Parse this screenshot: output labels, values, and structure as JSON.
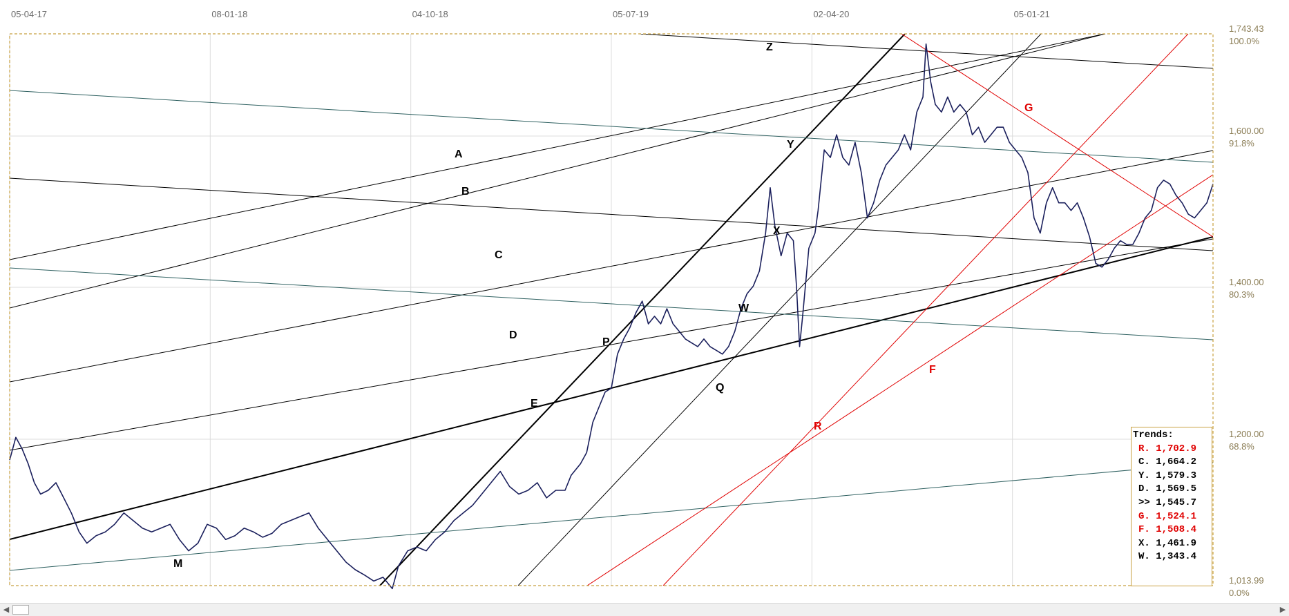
{
  "chart_data": {
    "type": "line",
    "title": "",
    "xlabel": "",
    "ylabel": "",
    "x_ticks": [
      "05-04-17",
      "08-01-18",
      "04-10-18",
      "05-07-19",
      "02-04-20",
      "05-01-21"
    ],
    "y_ticks": [
      {
        "price": "1,743.43",
        "pct": "100.0%"
      },
      {
        "price": "1,600.00",
        "pct": "91.8%"
      },
      {
        "price": "1,400.00",
        "pct": "80.3%"
      },
      {
        "price": "1,200.00",
        "pct": "68.8%"
      },
      {
        "price": "1,013.99",
        "pct": "0.0%"
      }
    ],
    "ylim": [
      1013.99,
      1743.43
    ],
    "grid": true,
    "series": [
      {
        "color": "#1a1f5c",
        "points": [
          [
            0,
            1180
          ],
          [
            4,
            1210
          ],
          [
            8,
            1195
          ],
          [
            12,
            1175
          ],
          [
            16,
            1150
          ],
          [
            20,
            1135
          ],
          [
            25,
            1140
          ],
          [
            30,
            1150
          ],
          [
            35,
            1130
          ],
          [
            40,
            1110
          ],
          [
            45,
            1085
          ],
          [
            50,
            1070
          ],
          [
            56,
            1080
          ],
          [
            62,
            1085
          ],
          [
            68,
            1095
          ],
          [
            74,
            1110
          ],
          [
            80,
            1100
          ],
          [
            86,
            1090
          ],
          [
            92,
            1085
          ],
          [
            98,
            1090
          ],
          [
            104,
            1095
          ],
          [
            110,
            1075
          ],
          [
            116,
            1060
          ],
          [
            122,
            1070
          ],
          [
            128,
            1095
          ],
          [
            134,
            1090
          ],
          [
            140,
            1075
          ],
          [
            146,
            1080
          ],
          [
            152,
            1090
          ],
          [
            158,
            1085
          ],
          [
            164,
            1078
          ],
          [
            170,
            1083
          ],
          [
            176,
            1095
          ],
          [
            182,
            1100
          ],
          [
            188,
            1105
          ],
          [
            194,
            1110
          ],
          [
            200,
            1090
          ],
          [
            206,
            1075
          ],
          [
            212,
            1060
          ],
          [
            218,
            1045
          ],
          [
            224,
            1035
          ],
          [
            230,
            1028
          ],
          [
            236,
            1020
          ],
          [
            242,
            1025
          ],
          [
            248,
            1010
          ],
          [
            252,
            1040
          ],
          [
            258,
            1060
          ],
          [
            264,
            1065
          ],
          [
            270,
            1060
          ],
          [
            276,
            1075
          ],
          [
            282,
            1085
          ],
          [
            288,
            1100
          ],
          [
            294,
            1110
          ],
          [
            300,
            1120
          ],
          [
            306,
            1135
          ],
          [
            312,
            1150
          ],
          [
            318,
            1165
          ],
          [
            324,
            1145
          ],
          [
            330,
            1135
          ],
          [
            336,
            1140
          ],
          [
            342,
            1150
          ],
          [
            348,
            1130
          ],
          [
            354,
            1140
          ],
          [
            360,
            1140
          ],
          [
            364,
            1160
          ],
          [
            370,
            1175
          ],
          [
            374,
            1190
          ],
          [
            378,
            1230
          ],
          [
            382,
            1250
          ],
          [
            386,
            1270
          ],
          [
            390,
            1275
          ],
          [
            394,
            1320
          ],
          [
            398,
            1340
          ],
          [
            402,
            1355
          ],
          [
            406,
            1375
          ],
          [
            410,
            1390
          ],
          [
            414,
            1360
          ],
          [
            418,
            1370
          ],
          [
            422,
            1360
          ],
          [
            426,
            1380
          ],
          [
            430,
            1360
          ],
          [
            434,
            1350
          ],
          [
            438,
            1340
          ],
          [
            442,
            1335
          ],
          [
            446,
            1330
          ],
          [
            450,
            1340
          ],
          [
            454,
            1330
          ],
          [
            458,
            1325
          ],
          [
            462,
            1320
          ],
          [
            466,
            1330
          ],
          [
            470,
            1350
          ],
          [
            474,
            1380
          ],
          [
            478,
            1400
          ],
          [
            482,
            1410
          ],
          [
            486,
            1430
          ],
          [
            490,
            1480
          ],
          [
            493,
            1540
          ],
          [
            496,
            1490
          ],
          [
            500,
            1450
          ],
          [
            504,
            1480
          ],
          [
            508,
            1470
          ],
          [
            510,
            1410
          ],
          [
            512,
            1330
          ],
          [
            514,
            1370
          ],
          [
            518,
            1460
          ],
          [
            522,
            1480
          ],
          [
            524,
            1510
          ],
          [
            528,
            1590
          ],
          [
            532,
            1580
          ],
          [
            536,
            1610
          ],
          [
            540,
            1580
          ],
          [
            544,
            1570
          ],
          [
            548,
            1600
          ],
          [
            552,
            1560
          ],
          [
            556,
            1500
          ],
          [
            560,
            1520
          ],
          [
            564,
            1550
          ],
          [
            568,
            1570
          ],
          [
            572,
            1580
          ],
          [
            576,
            1590
          ],
          [
            580,
            1610
          ],
          [
            584,
            1590
          ],
          [
            588,
            1640
          ],
          [
            592,
            1660
          ],
          [
            594,
            1730
          ],
          [
            597,
            1680
          ],
          [
            600,
            1650
          ],
          [
            604,
            1640
          ],
          [
            608,
            1660
          ],
          [
            612,
            1640
          ],
          [
            616,
            1650
          ],
          [
            620,
            1640
          ],
          [
            624,
            1610
          ],
          [
            628,
            1620
          ],
          [
            632,
            1600
          ],
          [
            636,
            1610
          ],
          [
            640,
            1620
          ],
          [
            644,
            1620
          ],
          [
            648,
            1600
          ],
          [
            652,
            1590
          ],
          [
            656,
            1580
          ],
          [
            660,
            1560
          ],
          [
            664,
            1500
          ],
          [
            668,
            1480
          ],
          [
            672,
            1520
          ],
          [
            676,
            1540
          ],
          [
            680,
            1520
          ],
          [
            684,
            1520
          ],
          [
            688,
            1510
          ],
          [
            692,
            1520
          ],
          [
            696,
            1500
          ],
          [
            700,
            1475
          ],
          [
            704,
            1440
          ],
          [
            708,
            1435
          ],
          [
            712,
            1445
          ],
          [
            716,
            1460
          ],
          [
            720,
            1470
          ],
          [
            724,
            1465
          ],
          [
            728,
            1465
          ],
          [
            732,
            1480
          ],
          [
            736,
            1500
          ],
          [
            740,
            1510
          ],
          [
            744,
            1540
          ],
          [
            748,
            1550
          ],
          [
            752,
            1545
          ],
          [
            756,
            1530
          ],
          [
            760,
            1520
          ],
          [
            764,
            1505
          ],
          [
            768,
            1500
          ],
          [
            772,
            1510
          ],
          [
            776,
            1520
          ],
          [
            780,
            1545
          ]
        ]
      }
    ],
    "x_domain": [
      0,
      780
    ],
    "x_tick_positions": [
      0,
      130,
      260,
      390,
      520,
      650
    ],
    "annotations": [
      {
        "label": "A",
        "color": "#000000"
      },
      {
        "label": "B",
        "color": "#000000"
      },
      {
        "label": "C",
        "color": "#000000"
      },
      {
        "label": "D",
        "color": "#000000"
      },
      {
        "label": "E",
        "color": "#000000"
      },
      {
        "label": "M",
        "color": "#000000"
      },
      {
        "label": "P",
        "color": "#000000"
      },
      {
        "label": "Q",
        "color": "#000000"
      },
      {
        "label": "W",
        "color": "#000000"
      },
      {
        "label": "X",
        "color": "#000000"
      },
      {
        "label": "Y",
        "color": "#000000"
      },
      {
        "label": "Z",
        "color": "#000000"
      },
      {
        "label": "R",
        "color": "#e00000"
      },
      {
        "label": "F",
        "color": "#e00000"
      },
      {
        "label": "G",
        "color": "#e00000"
      }
    ],
    "trends": {
      "title": "Trends:",
      "rows": [
        {
          "label": "R. 1,702.9",
          "color": "#e00000"
        },
        {
          "label": "C. 1,664.2",
          "color": "#000000"
        },
        {
          "label": "Y. 1,579.3",
          "color": "#000000"
        },
        {
          "label": "D. 1,569.5",
          "color": "#000000"
        },
        {
          "label": ">> 1,545.7",
          "color": "#000000"
        },
        {
          "label": "G. 1,524.1",
          "color": "#e00000"
        },
        {
          "label": "F. 1,508.4",
          "color": "#e00000"
        },
        {
          "label": "X. 1,461.9",
          "color": "#000000"
        },
        {
          "label": "W. 1,343.4",
          "color": "#000000"
        }
      ]
    }
  },
  "colors": {
    "price_line": "#1a1f5c",
    "frame": "#c8a040",
    "grid": "#dcdcdc",
    "trend_black": "#000000",
    "trend_red": "#e00000",
    "trend_teal": "#2e6060"
  },
  "scrollbar": {
    "left_icon": "chevron-left-icon",
    "right_icon": "chevron-right-icon"
  }
}
